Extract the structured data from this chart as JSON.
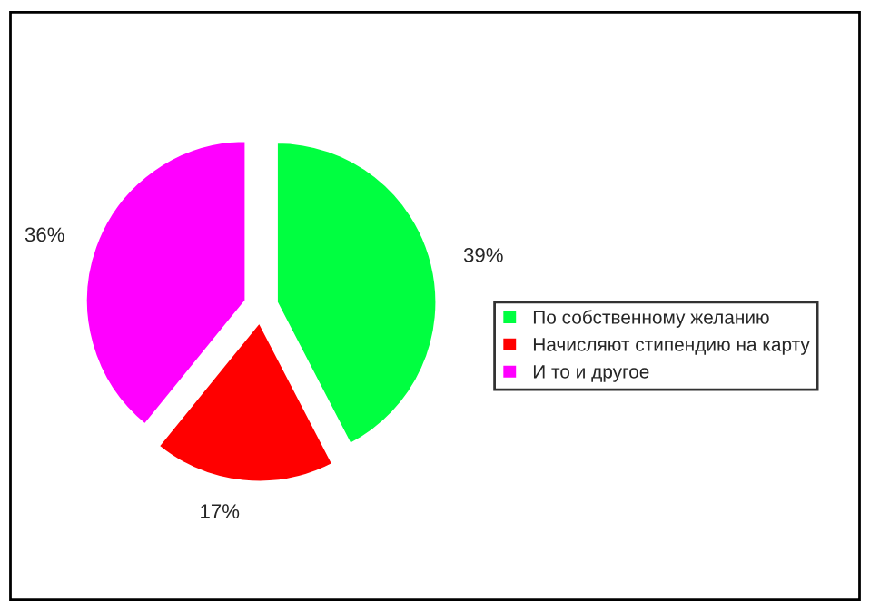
{
  "chart_data": {
    "type": "pie",
    "categories": [
      "По собственному желанию",
      "Начисляют стипендию на карту",
      "И то и другое"
    ],
    "values": [
      39,
      17,
      36
    ],
    "colors": [
      "#00ff40",
      "#ff0000",
      "#ff00ff"
    ],
    "value_labels": [
      "39%",
      "17%",
      "36%"
    ],
    "legend": "right"
  }
}
